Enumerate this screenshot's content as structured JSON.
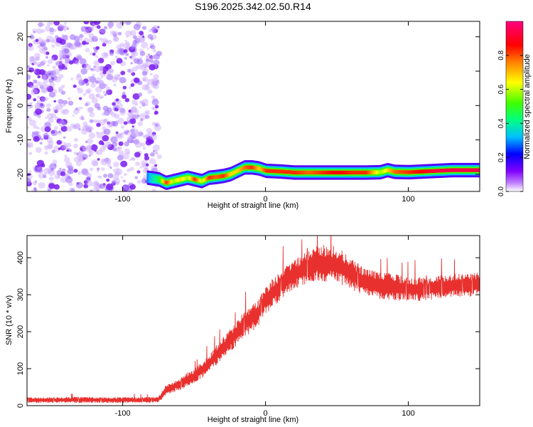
{
  "title": "S196.2025.342.02.50.R14",
  "chart_data": [
    {
      "type": "heatmap",
      "title": "S196.2025.342.02.50.R14",
      "xlabel": "Height of straight line (km)",
      "ylabel": "Frequency (Hz)",
      "xlim": [
        -167,
        150
      ],
      "ylim": [
        -25,
        24.5
      ],
      "x_ticks": [
        -100,
        0,
        100
      ],
      "x_tick_labels": [
        "-100",
        "0",
        "100"
      ],
      "y_ticks": [
        -20,
        -10,
        0,
        10,
        20
      ],
      "y_tick_labels": [
        "-20",
        "-10",
        "0",
        "10",
        "20"
      ],
      "colorbar": {
        "label": "Normalized spectral amplitude",
        "range": [
          0,
          1
        ],
        "ticks": [
          0.0,
          0.2,
          0.4,
          0.6,
          0.8
        ],
        "tick_labels": [
          "0.0",
          "0.2",
          "0.4",
          "0.6",
          "0.8"
        ],
        "colors": [
          "#ffffff",
          "#8000ff",
          "#0000ff",
          "#00c0ff",
          "#00ff80",
          "#40ff00",
          "#ffff00",
          "#ff8000",
          "#ff0000",
          "#ff0080"
        ]
      },
      "noise_region": {
        "x_range": [
          -167,
          -80
        ],
        "y_range": [
          -25,
          24.5
        ]
      },
      "signal_track": {
        "x": [
          -83,
          -75,
          -70,
          -65,
          -60,
          -55,
          -50,
          -45,
          -40,
          -35,
          -30,
          -25,
          -20,
          -15,
          -10,
          -5,
          0,
          10,
          20,
          30,
          40,
          50,
          60,
          70,
          80,
          85,
          90,
          100,
          110,
          120,
          130,
          140,
          150
        ],
        "frequency": [
          -21,
          -21.5,
          -22.5,
          -22,
          -21.5,
          -21,
          -21.5,
          -22,
          -21,
          -20.8,
          -20.5,
          -20,
          -19,
          -18,
          -18,
          -18.3,
          -19,
          -19.2,
          -19.5,
          -19.5,
          -19.5,
          -19.5,
          -19.5,
          -19.5,
          -19.4,
          -18.8,
          -19.3,
          -19.4,
          -19.2,
          -19,
          -18.8,
          -18.8,
          -18.8
        ],
        "amplitude": [
          0.3,
          0.5,
          0.85,
          0.6,
          0.7,
          0.6,
          0.85,
          0.6,
          0.85,
          0.8,
          0.85,
          0.7,
          0.7,
          0.8,
          0.85,
          0.7,
          0.85,
          0.85,
          0.85,
          0.8,
          0.85,
          0.9,
          0.85,
          0.85,
          0.6,
          0.7,
          0.8,
          0.85,
          0.9,
          0.95,
          0.95,
          0.95,
          0.95
        ]
      }
    },
    {
      "type": "line",
      "xlabel": "Height of straight line (km)",
      "ylabel": "SNR (10 * v/v)",
      "xlim": [
        -167,
        150
      ],
      "ylim": [
        0,
        460
      ],
      "x_ticks": [
        -100,
        0,
        100
      ],
      "x_tick_labels": [
        "-100",
        "0",
        "100"
      ],
      "y_ticks": [
        0,
        100,
        200,
        300,
        400
      ],
      "y_tick_labels": [
        "0",
        "100",
        "200",
        "300",
        "400"
      ],
      "series": [
        {
          "name": "SNR",
          "color": "#e8312e",
          "x": [
            -167,
            -150,
            -130,
            -110,
            -90,
            -75,
            -70,
            -65,
            -60,
            -55,
            -50,
            -45,
            -40,
            -35,
            -30,
            -25,
            -20,
            -15,
            -10,
            -5,
            0,
            5,
            10,
            15,
            20,
            25,
            30,
            35,
            40,
            45,
            50,
            55,
            60,
            65,
            70,
            80,
            90,
            100,
            110,
            120,
            130,
            140,
            150
          ],
          "values": [
            15,
            15,
            16,
            15,
            15,
            16,
            40,
            50,
            58,
            70,
            80,
            95,
            110,
            135,
            155,
            175,
            195,
            220,
            235,
            250,
            285,
            305,
            320,
            345,
            355,
            365,
            375,
            385,
            385,
            385,
            380,
            370,
            355,
            345,
            335,
            325,
            320,
            315,
            315,
            320,
            325,
            325,
            330
          ],
          "noise_amplitude": [
            8,
            8,
            9,
            8,
            8,
            9,
            15,
            15,
            18,
            20,
            20,
            25,
            25,
            30,
            30,
            35,
            35,
            40,
            40,
            40,
            40,
            45,
            45,
            45,
            45,
            45,
            50,
            50,
            55,
            55,
            55,
            50,
            45,
            45,
            40,
            40,
            40,
            35,
            35,
            35,
            35,
            35,
            35
          ]
        }
      ]
    }
  ]
}
